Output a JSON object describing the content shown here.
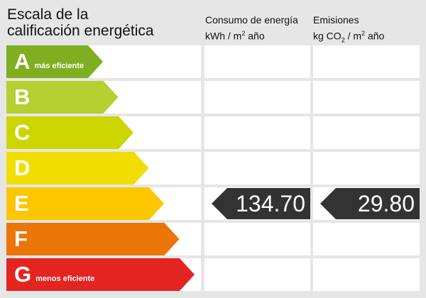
{
  "title": {
    "line1": "Escala de la",
    "line2": "calificación energética"
  },
  "consumo": {
    "line1": "Consumo de energía",
    "unit_pre": "kWh / m",
    "unit_sup": "2",
    "unit_post": " año",
    "value": "134.70"
  },
  "emisiones": {
    "line1": "Emisiones",
    "unit_pre": "kg CO",
    "unit_sub": "2",
    "unit_mid": " / m",
    "unit_sup": "2",
    "unit_post": " año",
    "value": "29.80"
  },
  "rating": "E",
  "classes": [
    {
      "letter": "A",
      "label": "más eficiente",
      "color": "#7fae1f"
    },
    {
      "letter": "B",
      "label": "",
      "color": "#b6cf31"
    },
    {
      "letter": "C",
      "label": "",
      "color": "#ccd500"
    },
    {
      "letter": "D",
      "label": "",
      "color": "#f1de00"
    },
    {
      "letter": "E",
      "label": "",
      "color": "#fcc600"
    },
    {
      "letter": "F",
      "label": "",
      "color": "#ec7508"
    },
    {
      "letter": "G",
      "label": "menos eficiente",
      "color": "#e42421"
    }
  ]
}
